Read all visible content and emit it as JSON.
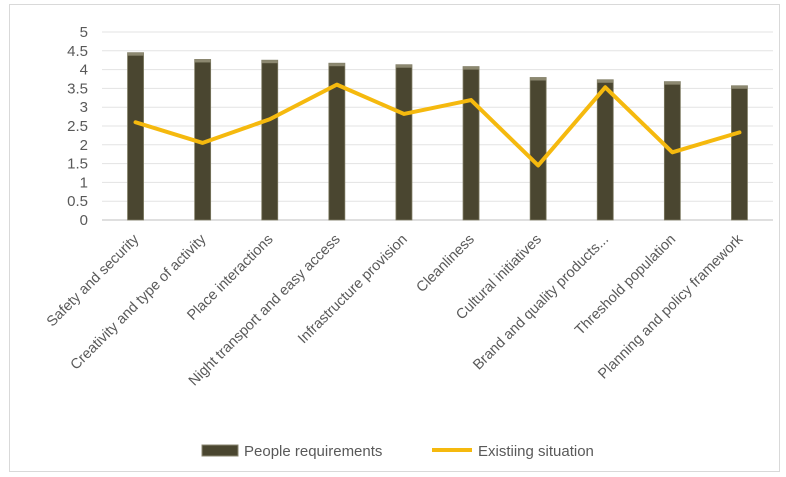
{
  "chart_data": {
    "type": "bar",
    "categories": [
      "Safety and security",
      "Creativity and type of activity",
      "Place interactions",
      "Night transport and easy access",
      "Infrastructure provision",
      "Cleanliness",
      "Cultural initiatives",
      "Brand and quality products...",
      "Threshold population",
      "Planning and policy framework"
    ],
    "series": [
      {
        "name": "People requirements",
        "type": "bar",
        "color": "#4a4630",
        "values": [
          4.45,
          4.27,
          4.25,
          4.17,
          4.13,
          4.08,
          3.79,
          3.73,
          3.68,
          3.57
        ]
      },
      {
        "name": "Existiing situation",
        "type": "line",
        "color": "#f5b90e",
        "values": [
          2.6,
          2.05,
          2.68,
          3.6,
          2.82,
          3.19,
          1.45,
          3.53,
          1.8,
          2.33
        ]
      }
    ],
    "yticks": [
      "0",
      "0.5",
      "1",
      "1.5",
      "2",
      "2.5",
      "3",
      "3.5",
      "4",
      "4.5",
      "5"
    ],
    "ylim": [
      0,
      5
    ],
    "grid": true,
    "legend": "bottom",
    "title": "",
    "xlabel": "",
    "ylabel": ""
  }
}
